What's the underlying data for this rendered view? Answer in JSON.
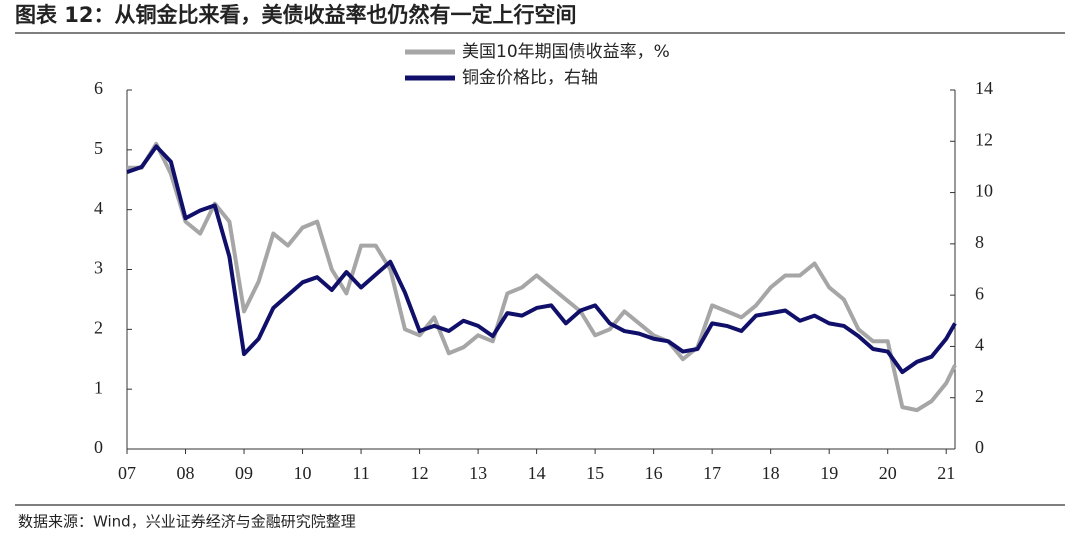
{
  "chart_data": {
    "type": "line",
    "title": "图表 12：从铜金比来看，美债收益率也仍然有一定上行空间",
    "source": "数据来源：Wind，兴业证券经济与金融研究院整理",
    "x": [
      7.0,
      7.25,
      7.5,
      7.75,
      8.0,
      8.25,
      8.5,
      8.75,
      9.0,
      9.25,
      9.5,
      9.75,
      10.0,
      10.25,
      10.5,
      10.75,
      11.0,
      11.25,
      11.5,
      11.75,
      12.0,
      12.25,
      12.5,
      12.75,
      13.0,
      13.25,
      13.5,
      13.75,
      14.0,
      14.25,
      14.5,
      14.75,
      15.0,
      15.25,
      15.5,
      15.75,
      16.0,
      16.25,
      16.5,
      16.75,
      17.0,
      17.25,
      17.5,
      17.75,
      18.0,
      18.25,
      18.5,
      18.75,
      19.0,
      19.25,
      19.5,
      19.75,
      20.0,
      20.25,
      20.5,
      20.75,
      21.0,
      21.15
    ],
    "series": [
      {
        "name": "美国10年期国债收益率，%",
        "color": "#a6a6a6",
        "axis": "y",
        "values": [
          4.7,
          4.7,
          5.1,
          4.6,
          3.8,
          3.6,
          4.1,
          3.8,
          2.3,
          2.8,
          3.6,
          3.4,
          3.7,
          3.8,
          3.0,
          2.6,
          3.4,
          3.4,
          3.0,
          2.0,
          1.9,
          2.2,
          1.6,
          1.7,
          1.9,
          1.8,
          2.6,
          2.7,
          2.9,
          2.7,
          2.5,
          2.3,
          1.9,
          2.0,
          2.3,
          2.1,
          1.9,
          1.8,
          1.5,
          1.7,
          2.4,
          2.3,
          2.2,
          2.4,
          2.7,
          2.9,
          2.9,
          3.1,
          2.7,
          2.5,
          2.0,
          1.8,
          1.8,
          0.7,
          0.65,
          0.8,
          1.1,
          1.4
        ]
      },
      {
        "name": "铜金价格比，右轴",
        "color": "#10106b",
        "axis": "y2",
        "values": [
          10.8,
          11.0,
          11.8,
          11.2,
          9.0,
          9.3,
          9.5,
          7.5,
          3.7,
          4.3,
          5.5,
          6.0,
          6.5,
          6.7,
          6.2,
          6.9,
          6.3,
          6.8,
          7.3,
          6.1,
          4.6,
          4.8,
          4.6,
          5.0,
          4.8,
          4.4,
          5.3,
          5.2,
          5.5,
          5.6,
          4.9,
          5.4,
          5.6,
          4.9,
          4.6,
          4.5,
          4.3,
          4.2,
          3.8,
          3.9,
          4.9,
          4.8,
          4.6,
          5.2,
          5.3,
          5.4,
          5.0,
          5.2,
          4.9,
          4.8,
          4.4,
          3.9,
          3.8,
          3.0,
          3.4,
          3.6,
          4.3,
          4.9
        ]
      }
    ],
    "xlim": [
      7,
      21.15
    ],
    "xticks": [
      {
        "value": 7,
        "label": "07"
      },
      {
        "value": 8,
        "label": "08"
      },
      {
        "value": 9,
        "label": "09"
      },
      10,
      11,
      12,
      13,
      14,
      15,
      16,
      17,
      18,
      19,
      20,
      21
    ],
    "ylim": [
      0,
      6
    ],
    "yticks": [
      0,
      1,
      2,
      3,
      4,
      5,
      6
    ],
    "y2lim": [
      0,
      14
    ],
    "y2ticks": [
      0,
      2,
      4,
      6,
      8,
      10,
      12,
      14
    ],
    "grid": false
  }
}
